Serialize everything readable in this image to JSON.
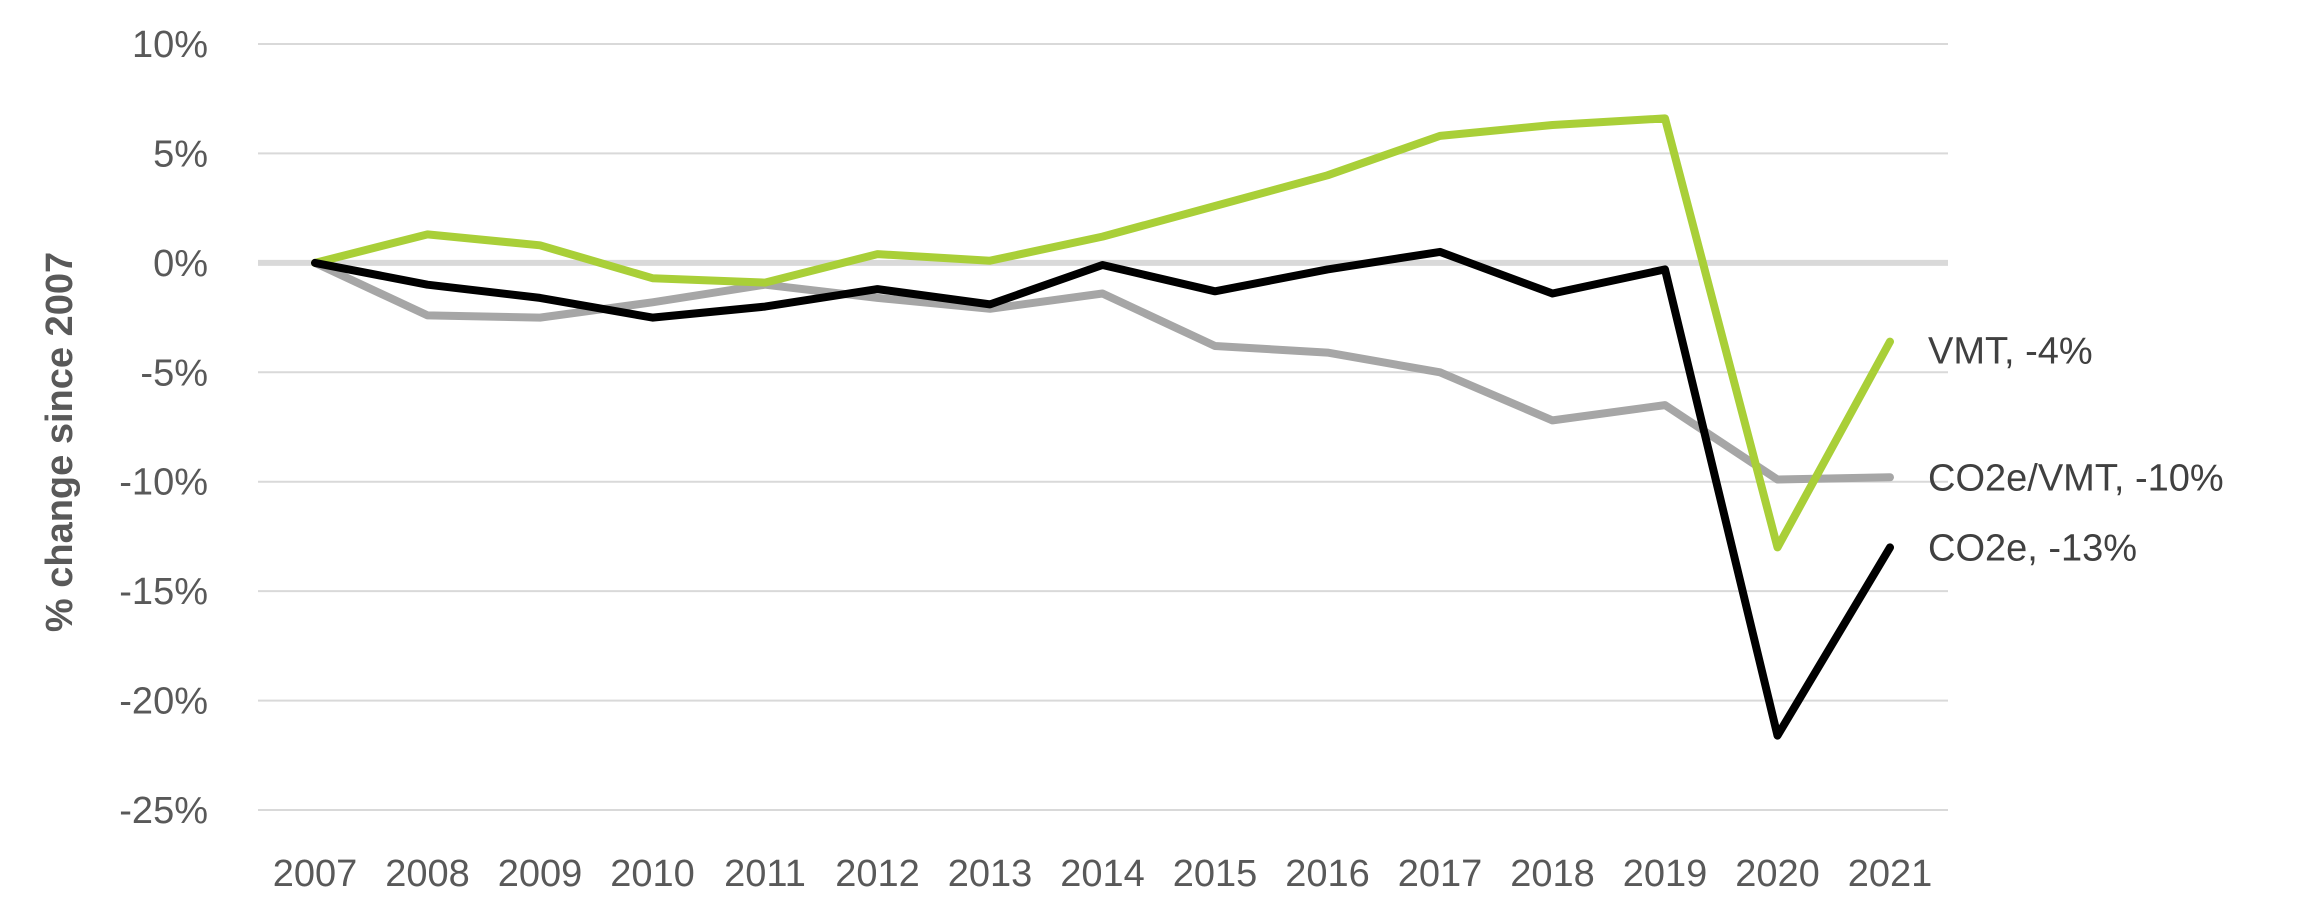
{
  "chart_data": {
    "type": "line",
    "x": [
      "2007",
      "2008",
      "2009",
      "2010",
      "2011",
      "2012",
      "2013",
      "2014",
      "2015",
      "2016",
      "2017",
      "2018",
      "2019",
      "2020",
      "2021"
    ],
    "ylabel": "% change since 2007",
    "xlabel": "",
    "ylim": [
      -25,
      10
    ],
    "yticks": [
      10,
      5,
      0,
      -5,
      -10,
      -15,
      -20,
      -25
    ],
    "ytick_labels": [
      "10%",
      "5%",
      "0%",
      "-5%",
      "-10%",
      "-15%",
      "-20%",
      "-25%"
    ],
    "grid": true,
    "legend": "end-of-line labels",
    "series": [
      {
        "name": "CO2e/VMT",
        "end_label": "CO2e/VMT, -10%",
        "color": "#a6a6a6",
        "values": [
          0,
          -2.4,
          -2.5,
          -1.8,
          -1.0,
          -1.6,
          -2.1,
          -1.4,
          -3.8,
          -4.1,
          -5.0,
          -7.2,
          -6.5,
          -9.9,
          -9.8
        ]
      },
      {
        "name": "VMT",
        "end_label": "VMT, -4%",
        "color": "#a9cf38",
        "values": [
          0,
          1.3,
          0.8,
          -0.7,
          -0.9,
          0.4,
          0.1,
          1.2,
          2.6,
          4.0,
          5.8,
          6.3,
          6.6,
          -13.0,
          -3.6
        ]
      },
      {
        "name": "CO2e",
        "end_label": "CO2e, -13%",
        "color": "#000000",
        "values": [
          0,
          -1.0,
          -1.6,
          -2.5,
          -2.0,
          -1.2,
          -1.9,
          -0.1,
          -1.3,
          -0.3,
          0.5,
          -1.4,
          -0.3,
          -21.6,
          -13.0
        ]
      }
    ]
  }
}
